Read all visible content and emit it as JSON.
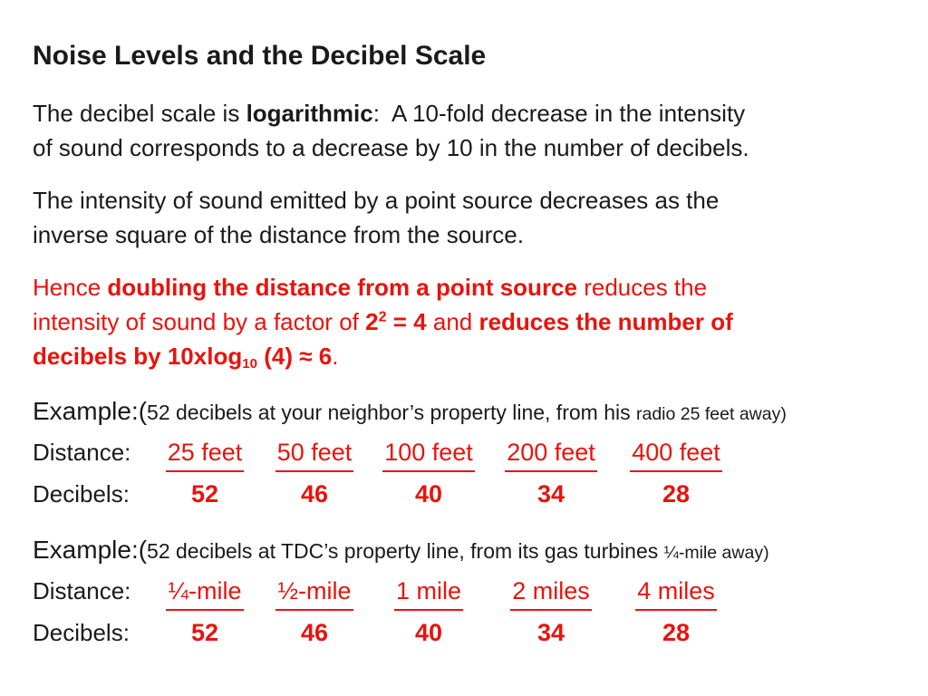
{
  "meta": {
    "colors": {
      "accent_red": "#e8130c",
      "text_black": "#1a1a1a",
      "background": "#ffffff"
    }
  },
  "slide": {
    "title": "Noise Levels and the Decibel Scale",
    "para1": {
      "l1_a": "The decibel scale is ",
      "l1_b": "logarithmic",
      "l1_c": ":  A 10-fold decrease in the intensity",
      "l2": "of sound corresponds to a decrease by 10 in the number of decibels."
    },
    "para2": {
      "l1": "The intensity of sound emitted by a point source decreases as the",
      "l2": "inverse square of the distance from the source."
    },
    "para3": {
      "l1_a": "Hence ",
      "l1_b": "doubling the distance from a point source",
      "l1_c": " reduces the",
      "l2_a": "intensity of sound by a factor of ",
      "l2_b_base": "2",
      "l2_b_sup": "2",
      "l2_c": " = 4",
      "l2_d": " and ",
      "l2_e": "reduces the number of",
      "l3_a": "decibels by 10xlog",
      "l3_a_sub": "10",
      "l3_b": " (4) ≈ 6",
      "l3_c": "."
    },
    "examples": [
      {
        "label": "Example:(",
        "mid": "52 decibels at your neighbor’s property line, from his ",
        "small": "radio 25 feet away)",
        "distance_label": "Distance:",
        "distances": [
          "25 feet",
          "50 feet",
          "100 feet",
          "200 feet",
          "400 feet"
        ],
        "decibels_label": "Decibels:",
        "decibels": [
          "52",
          "46",
          "40",
          "34",
          "28"
        ]
      },
      {
        "label": "Example:(",
        "mid": "52 decibels at TDC’s property line, from its gas turbines ",
        "small": "¼-mile away)",
        "distance_label": "Distance:",
        "distances": [
          "¼-mile",
          "½-mile",
          "1 mile",
          "2 miles",
          "4 miles"
        ],
        "decibels_label": "Decibels:",
        "decibels": [
          "52",
          "46",
          "40",
          "34",
          "28"
        ]
      }
    ]
  }
}
